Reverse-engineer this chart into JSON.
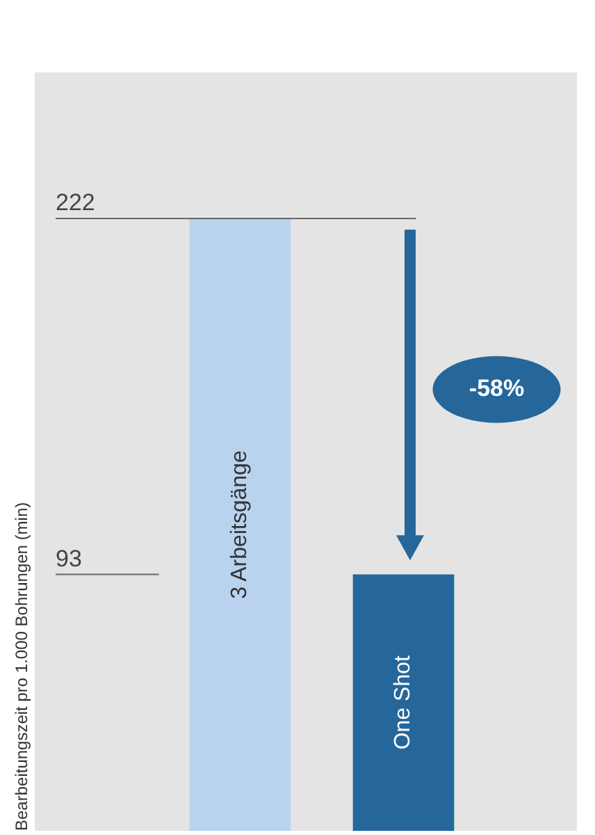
{
  "chart_data": {
    "type": "bar",
    "ylabel": "Bearbeitungszeit pro 1.000 Bohrungen (min)",
    "categories": [
      "3 Arbeitsgänge",
      "One Shot"
    ],
    "values": [
      222,
      93
    ],
    "colors": [
      "#b9d3ef",
      "#25679b"
    ],
    "ylim": [
      0,
      275
    ],
    "ref_lines": [
      {
        "axis": "y",
        "value": 222,
        "label": "222",
        "color": "#666666"
      },
      {
        "axis": "y",
        "value": 93,
        "label": "93",
        "color": "#666666"
      }
    ],
    "annotations": [
      "-58%"
    ]
  }
}
